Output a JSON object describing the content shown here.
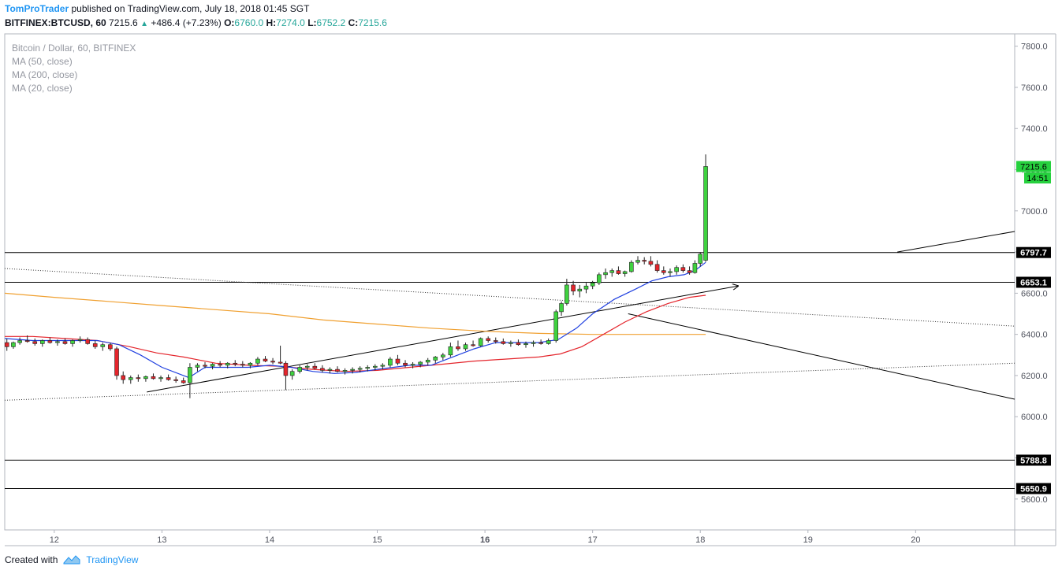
{
  "header": {
    "author": "TomProTrader",
    "published": " published on TradingView.com, July 18, 2018 01:45 SGT"
  },
  "quote": {
    "symbol": "BITFINEX:BTCUSD, 60",
    "last": "7215.6",
    "change": "+486.4 (+7.23%)",
    "o_label": "O:",
    "o": "6760.0",
    "h_label": "H:",
    "h": "7274.0",
    "l_label": "L:",
    "l": "6752.2",
    "c_label": "C:",
    "c": "7215.6"
  },
  "legend": {
    "title": "Bitcoin / Dollar, 60, BITFINEX",
    "ma50": "MA (50, close)",
    "ma200": "MA (200, close)",
    "ma20": "MA (20, close)"
  },
  "footer": {
    "created": "Created with",
    "brand": "TradingView"
  },
  "chart_data": {
    "type": "candlestick",
    "ylim": [
      5450,
      7860
    ],
    "y_ticks": [
      5600,
      5800,
      6000,
      6200,
      6400,
      6600,
      6800,
      7000,
      7200,
      7400,
      7600,
      7800
    ],
    "y_tick_labels": [
      "5600.0",
      "5800.0",
      "6000.0",
      "6200.0",
      "6400.0",
      "6600.0",
      "6800.0",
      "7000.0",
      "7200.0",
      "7400.0",
      "7600.0",
      "7800.0"
    ],
    "x_range": [
      11.54,
      20.92
    ],
    "x_ticks": [
      12,
      13,
      14,
      15,
      16,
      17,
      18,
      19,
      20
    ],
    "x_tick_labels": [
      "12",
      "13",
      "14",
      "15",
      "16",
      "17",
      "18",
      "19",
      "20"
    ],
    "colors": {
      "up": "#3fd23f",
      "down": "#e4252c",
      "ma20": "#2040e0",
      "ma50": "#e4252c",
      "ma200": "#f0a030",
      "price_tag": "#26d13e"
    },
    "price_labels": [
      {
        "value": 7215.6,
        "text": "7215.6",
        "kind": "last"
      },
      {
        "value": 7160,
        "text": "14:51",
        "kind": "countdown"
      },
      {
        "value": 6797.7,
        "text": "6797.7",
        "kind": "level"
      },
      {
        "value": 6653.1,
        "text": "6653.1",
        "kind": "level"
      },
      {
        "value": 5788.8,
        "text": "5788.8",
        "kind": "level"
      },
      {
        "value": 5650.9,
        "text": "5650.9",
        "kind": "level"
      }
    ],
    "horizontal_levels": [
      6797.7,
      6653.1,
      5788.8,
      5650.9
    ],
    "trendlines": [
      {
        "x1": 11.54,
        "y1": 6720,
        "x2": 20.92,
        "y2": 6440,
        "style": "dotted"
      },
      {
        "x1": 11.54,
        "y1": 6080,
        "x2": 20.92,
        "y2": 6260,
        "style": "dotted"
      },
      {
        "x1": 12.86,
        "y1": 6120,
        "x2": 18.35,
        "y2": 6635,
        "style": "solid",
        "arrow": true
      },
      {
        "x1": 17.33,
        "y1": 6500,
        "x2": 20.92,
        "y2": 6085,
        "style": "solid"
      },
      {
        "x1": 19.83,
        "y1": 6800,
        "x2": 20.92,
        "y2": 6900,
        "style": "solid"
      }
    ],
    "ma20": [
      [
        11.54,
        6380
      ],
      [
        11.8,
        6370
      ],
      [
        12.1,
        6370
      ],
      [
        12.4,
        6370
      ],
      [
        12.6,
        6350
      ],
      [
        12.8,
        6300
      ],
      [
        13.0,
        6240
      ],
      [
        13.25,
        6190
      ],
      [
        13.4,
        6240
      ],
      [
        13.6,
        6240
      ],
      [
        13.8,
        6240
      ],
      [
        14.0,
        6250
      ],
      [
        14.2,
        6240
      ],
      [
        14.4,
        6220
      ],
      [
        14.6,
        6210
      ],
      [
        14.8,
        6215
      ],
      [
        15.0,
        6230
      ],
      [
        15.3,
        6250
      ],
      [
        15.5,
        6250
      ],
      [
        15.7,
        6290
      ],
      [
        15.9,
        6330
      ],
      [
        16.1,
        6360
      ],
      [
        16.3,
        6360
      ],
      [
        16.5,
        6360
      ],
      [
        16.68,
        6375
      ],
      [
        16.85,
        6430
      ],
      [
        17.0,
        6500
      ],
      [
        17.2,
        6570
      ],
      [
        17.4,
        6620
      ],
      [
        17.55,
        6660
      ],
      [
        17.7,
        6680
      ],
      [
        17.85,
        6690
      ],
      [
        17.95,
        6710
      ],
      [
        18.05,
        6750
      ]
    ],
    "ma50": [
      [
        11.54,
        6390
      ],
      [
        11.8,
        6390
      ],
      [
        12.1,
        6380
      ],
      [
        12.4,
        6370
      ],
      [
        12.7,
        6340
      ],
      [
        12.95,
        6310
      ],
      [
        13.2,
        6290
      ],
      [
        13.5,
        6260
      ],
      [
        13.8,
        6250
      ],
      [
        14.1,
        6245
      ],
      [
        14.4,
        6230
      ],
      [
        14.7,
        6220
      ],
      [
        15.0,
        6225
      ],
      [
        15.3,
        6240
      ],
      [
        15.6,
        6255
      ],
      [
        15.9,
        6270
      ],
      [
        16.2,
        6280
      ],
      [
        16.5,
        6290
      ],
      [
        16.7,
        6305
      ],
      [
        16.9,
        6340
      ],
      [
        17.1,
        6400
      ],
      [
        17.3,
        6460
      ],
      [
        17.5,
        6510
      ],
      [
        17.7,
        6550
      ],
      [
        17.9,
        6580
      ],
      [
        18.05,
        6590
      ]
    ],
    "ma200": [
      [
        11.54,
        6600
      ],
      [
        12.0,
        6580
      ],
      [
        12.5,
        6560
      ],
      [
        13.0,
        6540
      ],
      [
        13.5,
        6520
      ],
      [
        14.0,
        6500
      ],
      [
        14.5,
        6470
      ],
      [
        15.0,
        6450
      ],
      [
        15.5,
        6430
      ],
      [
        16.0,
        6415
      ],
      [
        16.5,
        6405
      ],
      [
        17.0,
        6400
      ],
      [
        17.5,
        6400
      ],
      [
        18.05,
        6400
      ]
    ],
    "candles": [
      [
        11.56,
        6360,
        6380,
        6320,
        6340
      ],
      [
        11.62,
        6340,
        6365,
        6330,
        6360
      ],
      [
        11.68,
        6360,
        6385,
        6350,
        6370
      ],
      [
        11.75,
        6370,
        6395,
        6360,
        6365
      ],
      [
        11.82,
        6365,
        6380,
        6345,
        6355
      ],
      [
        11.89,
        6355,
        6375,
        6340,
        6370
      ],
      [
        11.96,
        6370,
        6385,
        6355,
        6360
      ],
      [
        12.03,
        6360,
        6375,
        6345,
        6365
      ],
      [
        12.1,
        6365,
        6380,
        6350,
        6355
      ],
      [
        12.17,
        6355,
        6375,
        6340,
        6370
      ],
      [
        12.24,
        6370,
        6390,
        6360,
        6375
      ],
      [
        12.31,
        6375,
        6385,
        6350,
        6355
      ],
      [
        12.38,
        6355,
        6370,
        6330,
        6340
      ],
      [
        12.45,
        6340,
        6360,
        6320,
        6350
      ],
      [
        12.52,
        6350,
        6360,
        6320,
        6330
      ],
      [
        12.58,
        6330,
        6340,
        6180,
        6200
      ],
      [
        12.64,
        6200,
        6220,
        6160,
        6180
      ],
      [
        12.71,
        6180,
        6200,
        6160,
        6190
      ],
      [
        12.78,
        6190,
        6205,
        6170,
        6185
      ],
      [
        12.85,
        6185,
        6200,
        6170,
        6195
      ],
      [
        12.92,
        6195,
        6210,
        6180,
        6185
      ],
      [
        12.99,
        6185,
        6200,
        6170,
        6190
      ],
      [
        13.06,
        6190,
        6205,
        6175,
        6180
      ],
      [
        13.13,
        6180,
        6195,
        6165,
        6175
      ],
      [
        13.2,
        6175,
        6190,
        6160,
        6165
      ],
      [
        13.26,
        6165,
        6260,
        6090,
        6240
      ],
      [
        13.33,
        6240,
        6260,
        6220,
        6250
      ],
      [
        13.4,
        6250,
        6265,
        6235,
        6245
      ],
      [
        13.47,
        6245,
        6260,
        6230,
        6255
      ],
      [
        13.54,
        6255,
        6270,
        6240,
        6250
      ],
      [
        13.61,
        6250,
        6265,
        6235,
        6260
      ],
      [
        13.68,
        6260,
        6275,
        6245,
        6255
      ],
      [
        13.75,
        6255,
        6270,
        6240,
        6250
      ],
      [
        13.82,
        6250,
        6265,
        6235,
        6260
      ],
      [
        13.89,
        6260,
        6290,
        6250,
        6280
      ],
      [
        13.96,
        6280,
        6295,
        6265,
        6270
      ],
      [
        14.03,
        6270,
        6285,
        6255,
        6265
      ],
      [
        14.1,
        6265,
        6345,
        6255,
        6260
      ],
      [
        14.15,
        6260,
        6270,
        6130,
        6200
      ],
      [
        14.21,
        6200,
        6230,
        6180,
        6220
      ],
      [
        14.28,
        6220,
        6250,
        6210,
        6240
      ],
      [
        14.35,
        6240,
        6255,
        6225,
        6245
      ],
      [
        14.42,
        6245,
        6260,
        6230,
        6235
      ],
      [
        14.49,
        6235,
        6250,
        6215,
        6225
      ],
      [
        14.56,
        6225,
        6240,
        6210,
        6230
      ],
      [
        14.63,
        6230,
        6245,
        6215,
        6220
      ],
      [
        14.7,
        6220,
        6235,
        6205,
        6225
      ],
      [
        14.77,
        6225,
        6240,
        6210,
        6230
      ],
      [
        14.84,
        6230,
        6245,
        6215,
        6235
      ],
      [
        14.91,
        6235,
        6250,
        6220,
        6240
      ],
      [
        14.98,
        6240,
        6255,
        6225,
        6245
      ],
      [
        15.05,
        6245,
        6260,
        6230,
        6250
      ],
      [
        15.12,
        6250,
        6290,
        6240,
        6280
      ],
      [
        15.19,
        6280,
        6300,
        6250,
        6260
      ],
      [
        15.26,
        6260,
        6275,
        6240,
        6250
      ],
      [
        15.33,
        6250,
        6265,
        6235,
        6255
      ],
      [
        15.4,
        6255,
        6270,
        6240,
        6265
      ],
      [
        15.47,
        6265,
        6285,
        6250,
        6275
      ],
      [
        15.54,
        6275,
        6295,
        6260,
        6290
      ],
      [
        15.61,
        6290,
        6310,
        6275,
        6300
      ],
      [
        15.68,
        6300,
        6360,
        6290,
        6340
      ],
      [
        15.75,
        6340,
        6370,
        6320,
        6330
      ],
      [
        15.82,
        6330,
        6360,
        6320,
        6350
      ],
      [
        15.89,
        6350,
        6370,
        6340,
        6345
      ],
      [
        15.96,
        6345,
        6385,
        6340,
        6380
      ],
      [
        16.03,
        6380,
        6390,
        6360,
        6370
      ],
      [
        16.1,
        6370,
        6385,
        6355,
        6365
      ],
      [
        16.17,
        6365,
        6380,
        6350,
        6355
      ],
      [
        16.24,
        6355,
        6370,
        6340,
        6360
      ],
      [
        16.31,
        6360,
        6375,
        6345,
        6350
      ],
      [
        16.38,
        6350,
        6365,
        6335,
        6355
      ],
      [
        16.45,
        6355,
        6370,
        6340,
        6360
      ],
      [
        16.52,
        6360,
        6375,
        6350,
        6355
      ],
      [
        16.59,
        6355,
        6380,
        6350,
        6370
      ],
      [
        16.66,
        6370,
        6520,
        6360,
        6510
      ],
      [
        16.71,
        6510,
        6560,
        6490,
        6550
      ],
      [
        16.76,
        6550,
        6670,
        6540,
        6640
      ],
      [
        16.82,
        6640,
        6660,
        6590,
        6610
      ],
      [
        16.88,
        6610,
        6640,
        6580,
        6620
      ],
      [
        16.94,
        6620,
        6650,
        6600,
        6635
      ],
      [
        17.0,
        6635,
        6660,
        6620,
        6650
      ],
      [
        17.06,
        6650,
        6700,
        6640,
        6690
      ],
      [
        17.12,
        6690,
        6720,
        6670,
        6700
      ],
      [
        17.18,
        6700,
        6720,
        6680,
        6710
      ],
      [
        17.24,
        6710,
        6730,
        6690,
        6695
      ],
      [
        17.3,
        6695,
        6710,
        6680,
        6705
      ],
      [
        17.36,
        6705,
        6760,
        6700,
        6750
      ],
      [
        17.42,
        6750,
        6780,
        6740,
        6760
      ],
      [
        17.48,
        6760,
        6775,
        6740,
        6755
      ],
      [
        17.54,
        6755,
        6780,
        6730,
        6740
      ],
      [
        17.6,
        6740,
        6760,
        6700,
        6710
      ],
      [
        17.66,
        6710,
        6730,
        6690,
        6700
      ],
      [
        17.72,
        6700,
        6720,
        6680,
        6705
      ],
      [
        17.78,
        6705,
        6735,
        6690,
        6725
      ],
      [
        17.84,
        6725,
        6740,
        6700,
        6710
      ],
      [
        17.9,
        6710,
        6730,
        6690,
        6700
      ],
      [
        17.95,
        6700,
        6760,
        6695,
        6745
      ],
      [
        18.0,
        6745,
        6800,
        6730,
        6790
      ],
      [
        18.05,
        6760,
        7274,
        6752,
        7215.6
      ]
    ]
  }
}
